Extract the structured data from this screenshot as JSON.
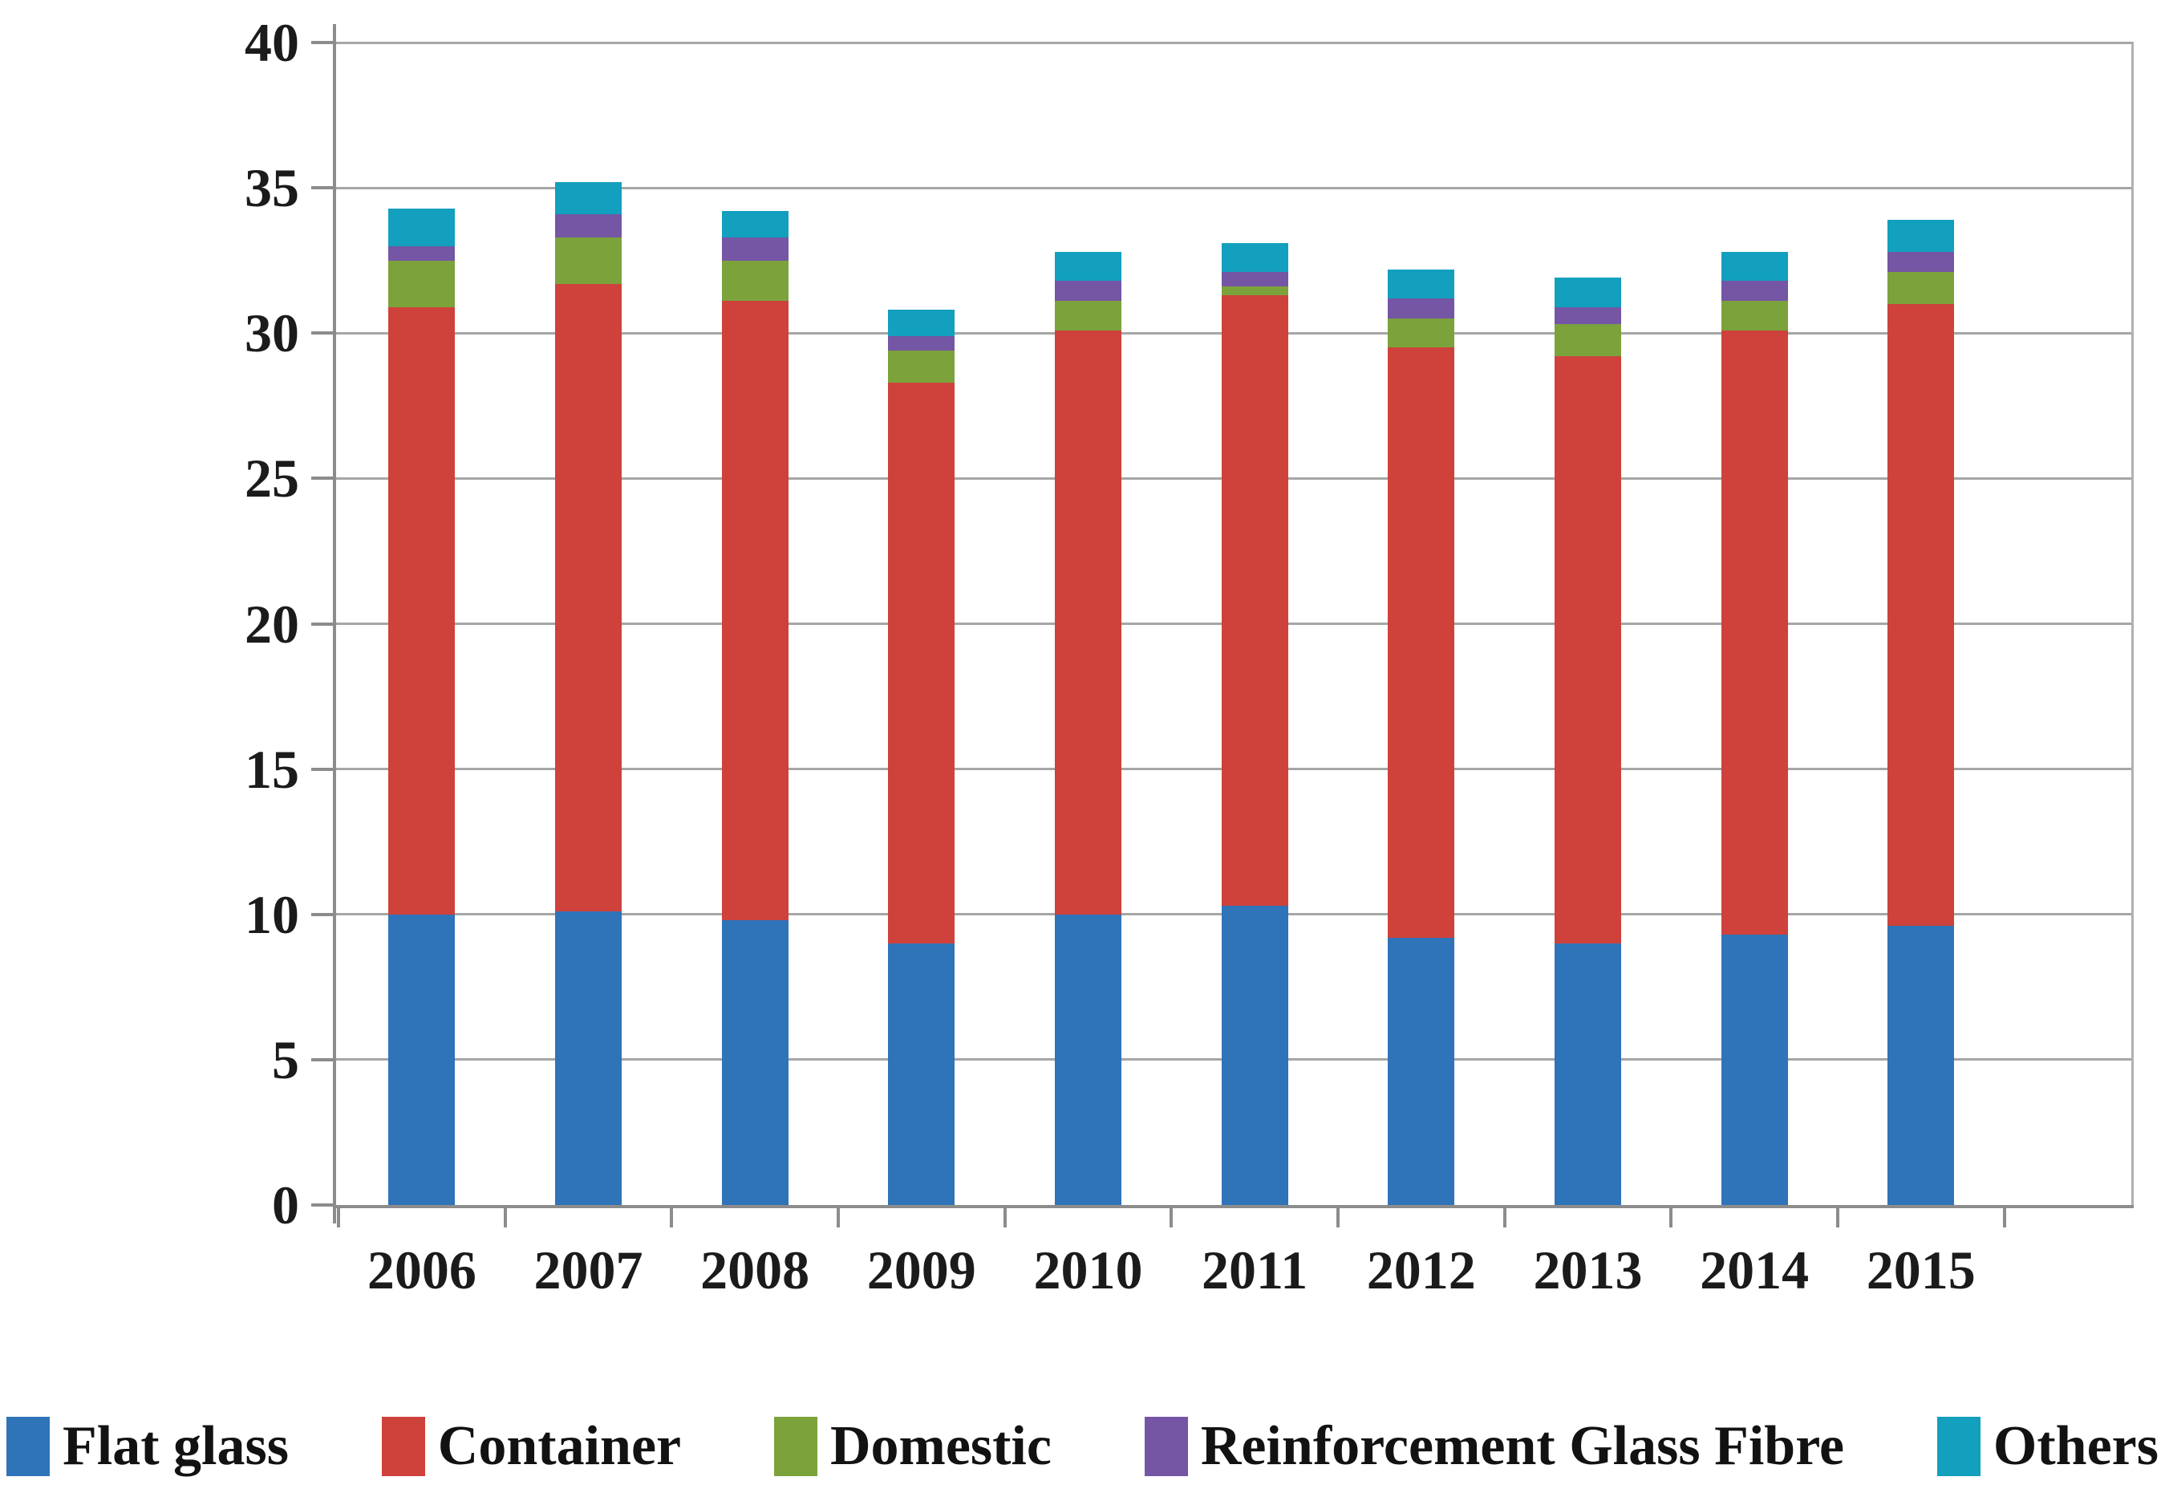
{
  "chart_data": {
    "type": "bar",
    "stacked": true,
    "title": "",
    "xlabel": "",
    "ylabel": "",
    "categories": [
      "2006",
      "2007",
      "2008",
      "2009",
      "2010",
      "2011",
      "2012",
      "2013",
      "2014",
      "2015"
    ],
    "series": [
      {
        "name": "Flat glass",
        "color": "#2f73b9",
        "values": [
          10.0,
          10.1,
          9.8,
          9.0,
          10.0,
          10.3,
          9.2,
          9.0,
          9.3,
          9.6
        ]
      },
      {
        "name": "Container",
        "color": "#ce423b",
        "values": [
          20.9,
          21.6,
          21.3,
          19.3,
          20.1,
          21.0,
          20.3,
          20.2,
          20.8,
          21.4
        ]
      },
      {
        "name": "Domestic",
        "color": "#7ca23c",
        "values": [
          1.6,
          1.6,
          1.4,
          1.1,
          1.0,
          0.3,
          1.0,
          1.1,
          1.0,
          1.1
        ]
      },
      {
        "name": "Reinforcement Glass Fibre",
        "color": "#7456a4",
        "values": [
          0.5,
          0.8,
          0.8,
          0.5,
          0.7,
          0.5,
          0.7,
          0.6,
          0.7,
          0.7
        ]
      },
      {
        "name": "Others",
        "color": "#139fbe",
        "values": [
          1.3,
          1.1,
          0.9,
          0.9,
          1.0,
          1.0,
          1.0,
          1.0,
          1.0,
          1.1
        ]
      }
    ],
    "stack_totals": [
      34.3,
      35.2,
      34.2,
      30.8,
      32.8,
      33.1,
      32.2,
      31.9,
      32.8,
      33.9
    ],
    "ylim": [
      0,
      40
    ],
    "yticks": [
      0,
      5,
      10,
      15,
      20,
      25,
      30,
      35,
      40
    ],
    "grid": true,
    "gridline_color": "#a6a6a6",
    "axis_color": "#8c8c8c",
    "label_color": "#1b1b1b",
    "legend_position": "bottom"
  }
}
